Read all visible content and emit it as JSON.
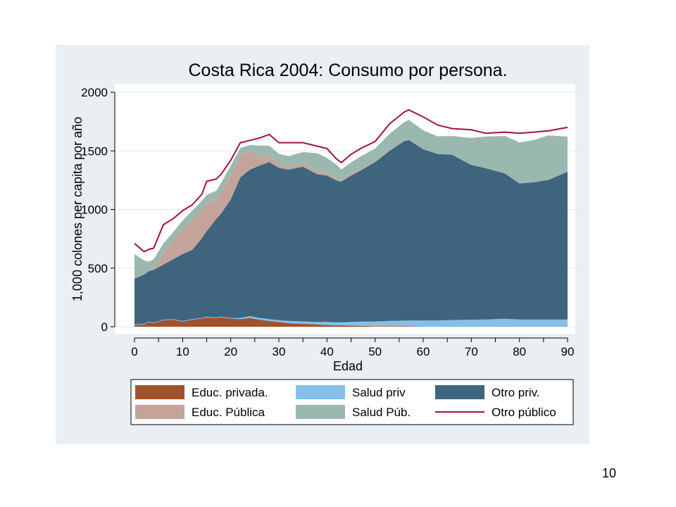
{
  "slide": {
    "page_number": "10"
  },
  "colors": {
    "panel_bg": "#e9eff3",
    "plot_bg": "#ffffff",
    "educ_privada": "#a0522d",
    "educ_publica": "#c4a49a",
    "salud_priv": "#86bfe8",
    "salud_pub": "#9bb8b0",
    "otro_priv": "#3f647e",
    "otro_publico": "#a0143c"
  },
  "chart_data": {
    "type": "area",
    "title": "Costa Rica 2004: Consumo por persona.",
    "xlabel": "Edad",
    "ylabel": "1,000 colones per capita por año",
    "xlim": [
      0,
      90
    ],
    "ylim": [
      0,
      2000
    ],
    "xticks": [
      "0",
      "10",
      "20",
      "30",
      "40",
      "50",
      "60",
      "70",
      "80",
      "90"
    ],
    "yticks": [
      "0",
      "500",
      "1000",
      "1500",
      "2000"
    ],
    "grid": true,
    "legend_position": "bottom",
    "stacked": true,
    "x": [
      0,
      2,
      3,
      4,
      6,
      8,
      10,
      12,
      14,
      15,
      17,
      18,
      20,
      22,
      24,
      26,
      28,
      30,
      32,
      35,
      38,
      40,
      42,
      43,
      45,
      47,
      50,
      53,
      56,
      57,
      60,
      63,
      66,
      70,
      73,
      77,
      80,
      83,
      86,
      90
    ],
    "series": [
      {
        "name": "Educ. privada.",
        "color_key": "educ_privada",
        "type": "area",
        "values": [
          15,
          20,
          40,
          30,
          55,
          60,
          45,
          60,
          70,
          80,
          75,
          80,
          70,
          65,
          75,
          60,
          50,
          40,
          30,
          25,
          20,
          15,
          12,
          12,
          10,
          8,
          5,
          5,
          3,
          3,
          2,
          2,
          2,
          2,
          2,
          2,
          2,
          2,
          2,
          2
        ]
      },
      {
        "name": "Salud priv",
        "color_key": "salud_priv",
        "type": "area",
        "values": [
          5,
          5,
          5,
          5,
          5,
          5,
          5,
          5,
          5,
          5,
          5,
          5,
          5,
          10,
          15,
          15,
          15,
          15,
          20,
          20,
          20,
          25,
          25,
          25,
          30,
          35,
          40,
          45,
          50,
          50,
          52,
          52,
          55,
          58,
          60,
          65,
          60,
          60,
          60,
          60
        ]
      },
      {
        "name": "Otro priv.",
        "color_key": "otro_priv",
        "type": "area",
        "values": [
          390,
          420,
          430,
          450,
          470,
          510,
          570,
          590,
          680,
          730,
          840,
          880,
          1010,
          1200,
          1250,
          1300,
          1340,
          1300,
          1290,
          1320,
          1260,
          1250,
          1210,
          1200,
          1250,
          1290,
          1360,
          1450,
          1530,
          1540,
          1460,
          1420,
          1410,
          1320,
          1290,
          1240,
          1160,
          1170,
          1190,
          1260
        ]
      },
      {
        "name": "Educ. Pública",
        "color_key": "educ_publica",
        "type": "area",
        "values": [
          0,
          0,
          0,
          10,
          100,
          160,
          210,
          260,
          250,
          240,
          160,
          180,
          200,
          180,
          170,
          70,
          60,
          30,
          20,
          30,
          30,
          20,
          15,
          15,
          12,
          10,
          5,
          5,
          2,
          2,
          1,
          0,
          0,
          0,
          0,
          0,
          0,
          0,
          0,
          0
        ]
      },
      {
        "name": "Salud Púb.",
        "color_key": "salud_pub",
        "type": "area",
        "values": [
          210,
          120,
          80,
          80,
          80,
          70,
          75,
          75,
          70,
          70,
          80,
          80,
          90,
          70,
          40,
          100,
          80,
          90,
          95,
          95,
          150,
          130,
          120,
          90,
          100,
          110,
          110,
          140,
          160,
          170,
          160,
          150,
          160,
          230,
          270,
          320,
          350,
          360,
          380,
          300
        ]
      },
      {
        "name": "Otro público",
        "color_key": "otro_publico",
        "type": "line",
        "values": [
          710,
          640,
          660,
          670,
          870,
          920,
          990,
          1040,
          1130,
          1240,
          1260,
          1300,
          1420,
          1570,
          1590,
          1610,
          1640,
          1570,
          1570,
          1570,
          1540,
          1520,
          1430,
          1400,
          1470,
          1520,
          1580,
          1730,
          1830,
          1850,
          1790,
          1720,
          1690,
          1680,
          1650,
          1660,
          1650,
          1660,
          1670,
          1700
        ]
      }
    ],
    "legend_order": [
      "Educ. privada.",
      "Salud priv",
      "Otro priv.",
      "Educ. Pública",
      "Salud Púb.",
      "Otro público"
    ]
  }
}
